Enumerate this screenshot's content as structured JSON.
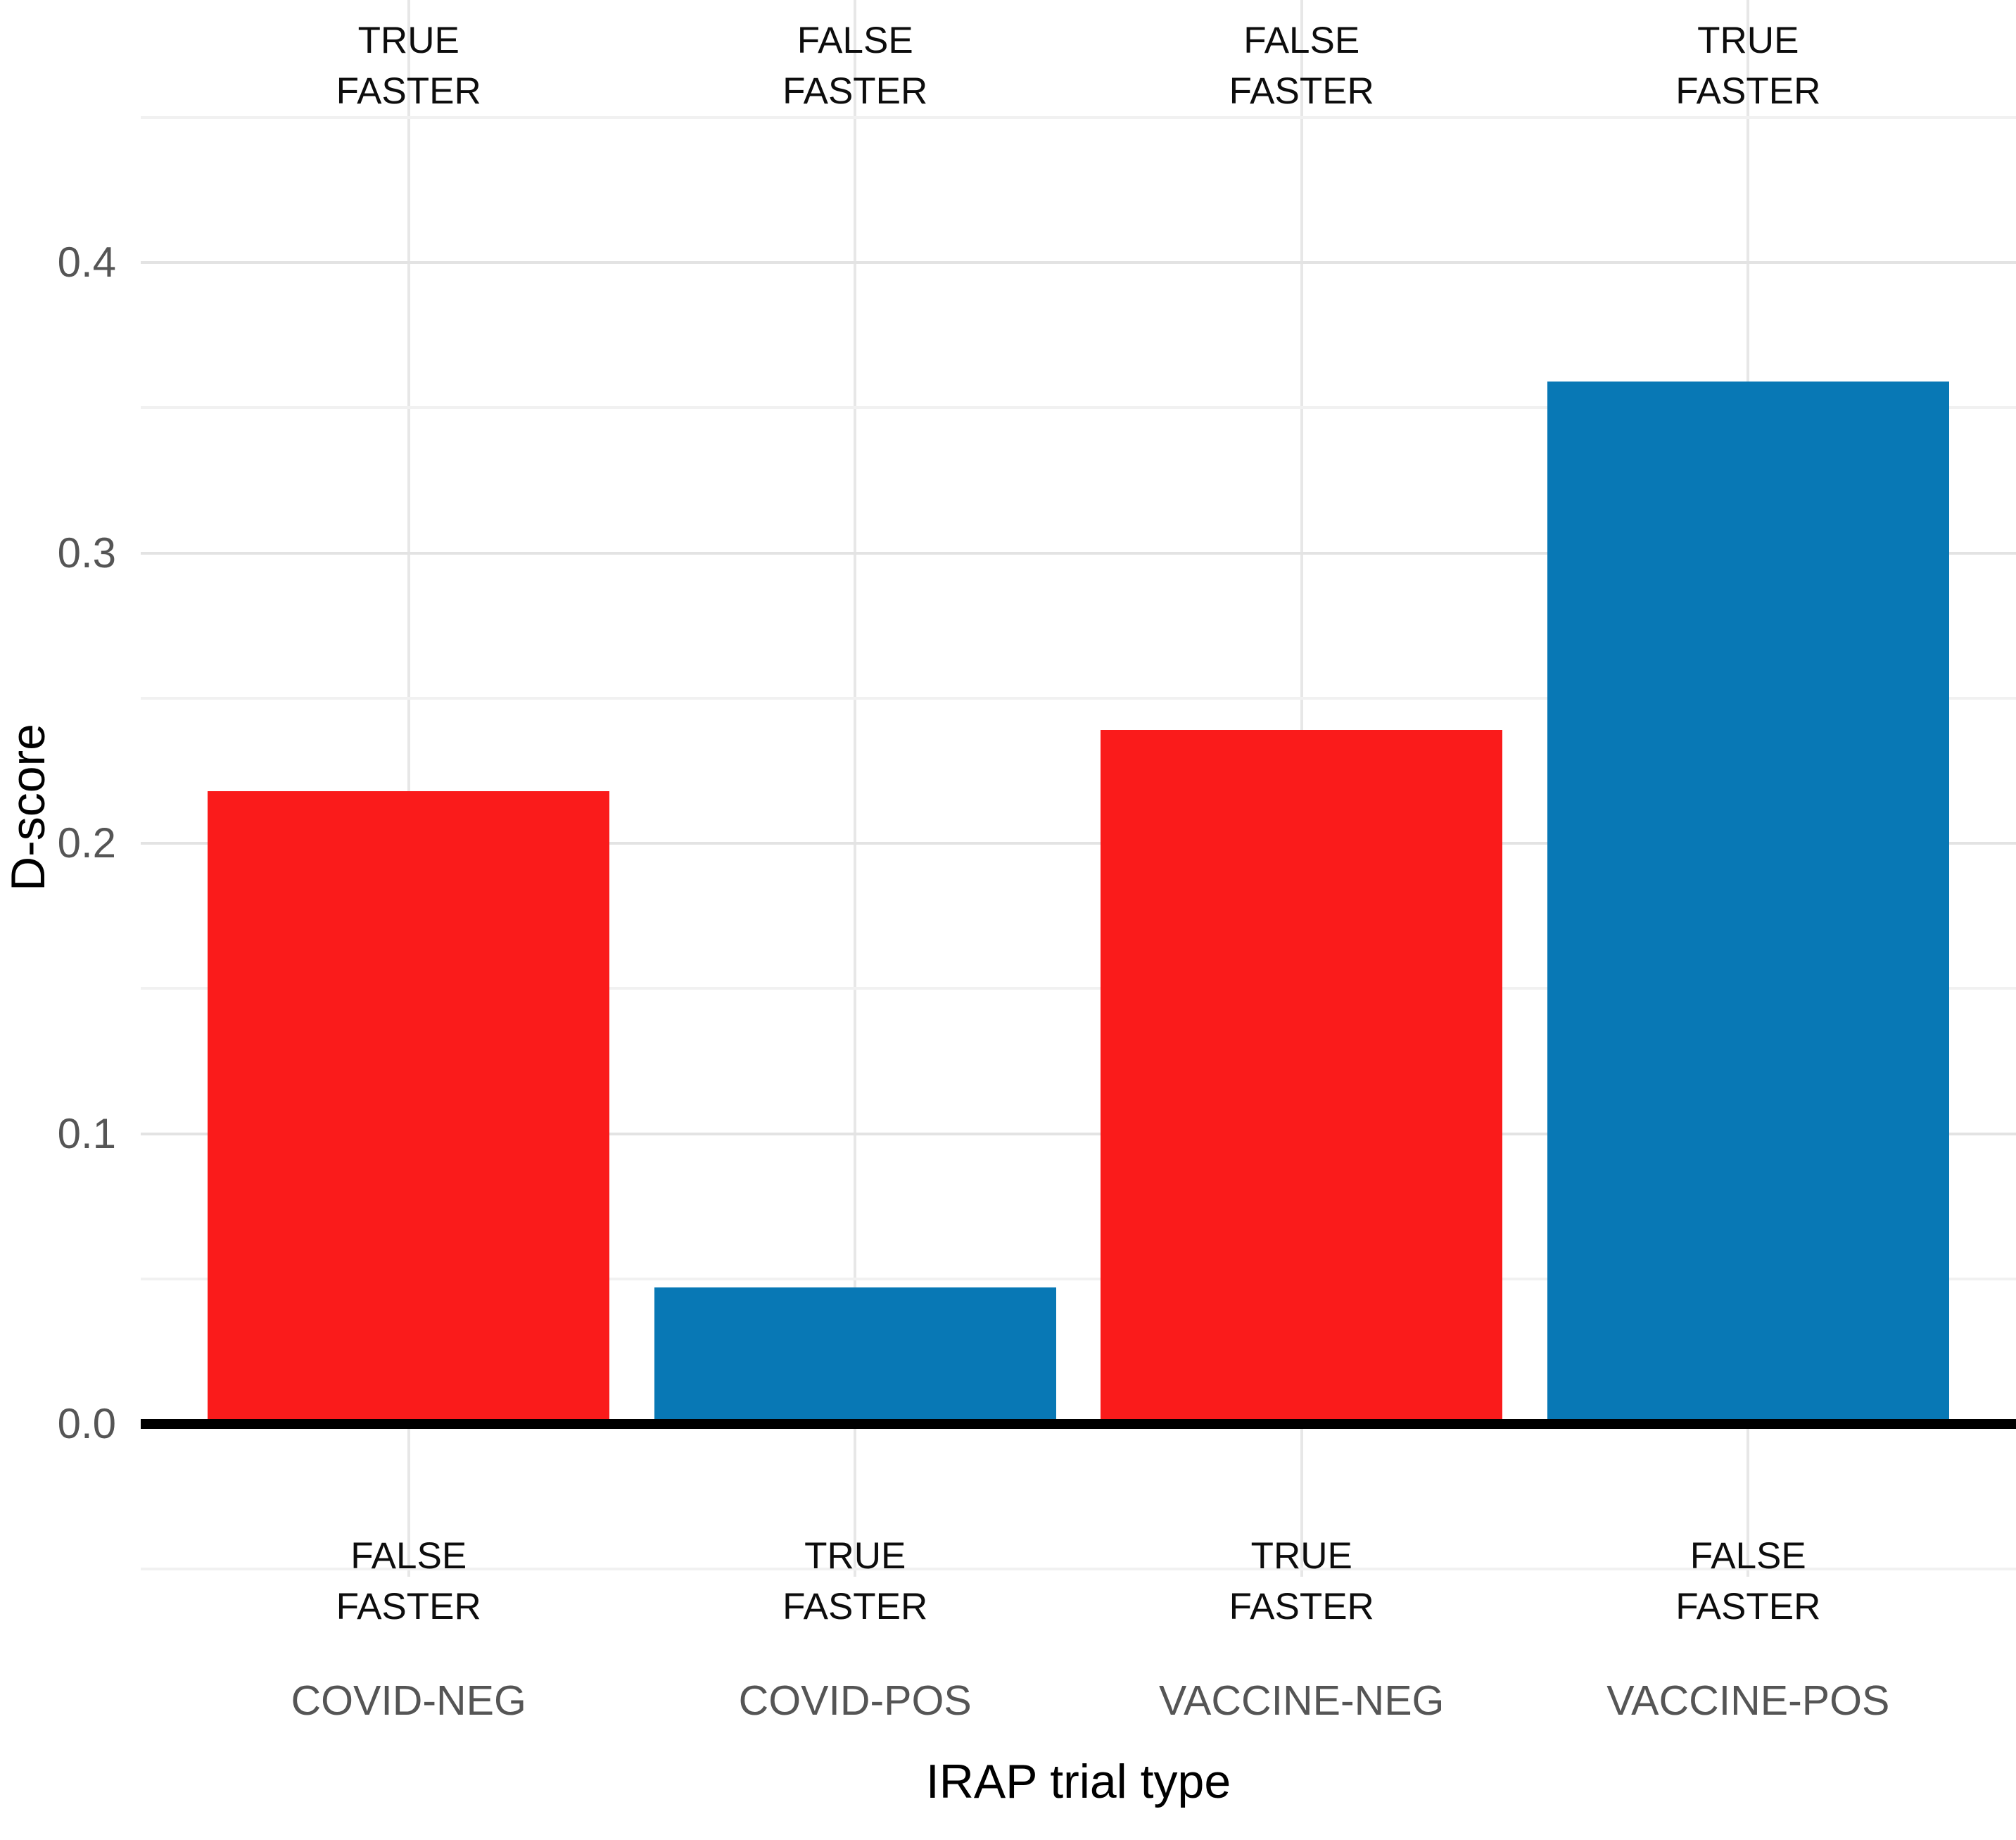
{
  "chart_data": {
    "type": "bar",
    "title": "",
    "xlabel": "IRAP trial type",
    "ylabel": "D-score",
    "categories": [
      "COVID-NEG",
      "COVID-POS",
      "VACCINE-NEG",
      "VACCINE-POS"
    ],
    "values": [
      0.218,
      0.047,
      0.239,
      0.359
    ],
    "bar_colors": [
      "#fa1b1b",
      "#0878b5",
      "#fa1b1b",
      "#0878b5"
    ],
    "top_annotations": [
      [
        "TRUE",
        "FASTER"
      ],
      [
        "FALSE",
        "FASTER"
      ],
      [
        "FALSE",
        "FASTER"
      ],
      [
        "TRUE",
        "FASTER"
      ]
    ],
    "bottom_annotations": [
      [
        "FALSE",
        "FASTER"
      ],
      [
        "TRUE",
        "FASTER"
      ],
      [
        "TRUE",
        "FASTER"
      ],
      [
        "FALSE",
        "FASTER"
      ]
    ],
    "yticks": [
      0.0,
      0.1,
      0.2,
      0.3,
      0.4
    ],
    "minor_ticks": [
      -0.05,
      0.05,
      0.15,
      0.25,
      0.35,
      0.45
    ],
    "ylim": [
      -0.053,
      0.49
    ],
    "grid": true,
    "legend": false,
    "colors": {
      "grid_major": "#e3e3e3",
      "grid_minor": "#f1f1f1",
      "grid_vertical": "#e7e7e7",
      "axis_line": "#000000",
      "tick_text": "#555555",
      "annotation_text": "#0d0d0d"
    }
  }
}
